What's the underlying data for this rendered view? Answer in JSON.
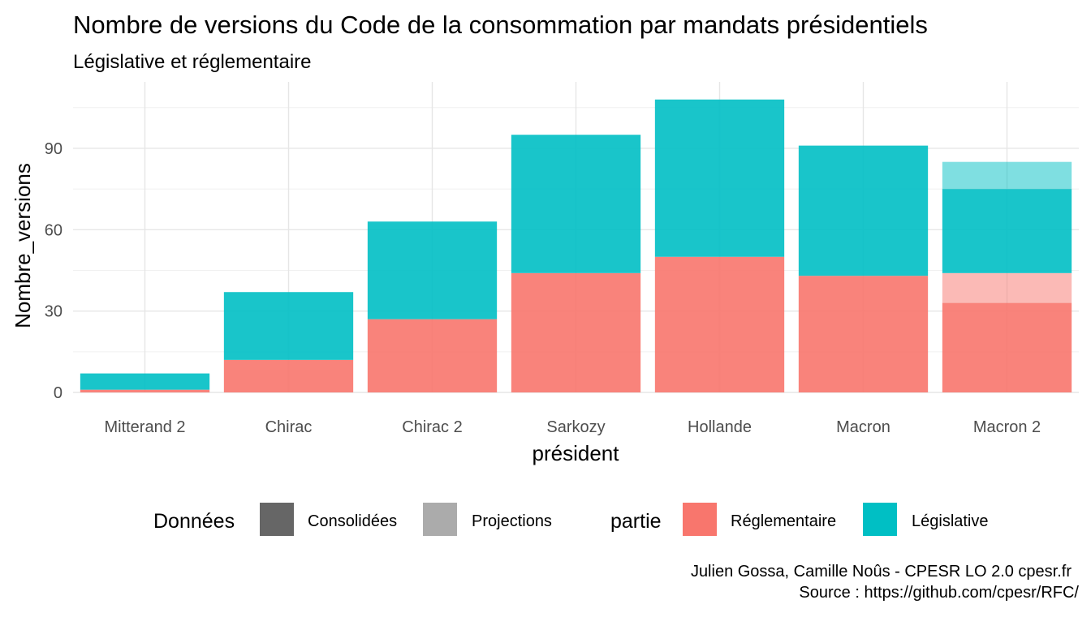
{
  "chart_data": {
    "type": "bar",
    "stacked": true,
    "title": "Nombre de versions du Code de la consommation par mandats présidentiels",
    "subtitle": "Législative et réglementaire",
    "xlabel": "président",
    "ylabel": "Nombre_versions",
    "categories": [
      "Mitterand 2",
      "Chirac",
      "Chirac 2",
      "Sarkozy",
      "Hollande",
      "Macron",
      "Macron 2"
    ],
    "ylim": [
      0,
      110
    ],
    "yticks": [
      0,
      30,
      60,
      90
    ],
    "grid": true,
    "series": [
      {
        "name": "Réglementaire",
        "data_kind": "Consolidées",
        "color": "#F8766D",
        "opacity": 0.9,
        "values": [
          1,
          12,
          27,
          44,
          50,
          43,
          33
        ]
      },
      {
        "name": "Réglementaire",
        "data_kind": "Projections",
        "color": "#F8766D",
        "opacity": 0.5,
        "values": [
          0,
          0,
          0,
          0,
          0,
          0,
          11
        ]
      },
      {
        "name": "Législative",
        "data_kind": "Consolidées",
        "color": "#00BFC4",
        "opacity": 0.9,
        "values": [
          6,
          25,
          36,
          51,
          58,
          48,
          31
        ]
      },
      {
        "name": "Législative",
        "data_kind": "Projections",
        "color": "#00BFC4",
        "opacity": 0.5,
        "values": [
          0,
          0,
          0,
          0,
          0,
          0,
          10
        ]
      }
    ],
    "legend": {
      "placement": "bottom",
      "groups": [
        {
          "title": "Données",
          "items": [
            {
              "label": "Consolidées",
              "color": "#666666"
            },
            {
              "label": "Projections",
              "color": "#ababab"
            }
          ]
        },
        {
          "title": "partie",
          "items": [
            {
              "label": "Réglementaire",
              "color": "#F8766D"
            },
            {
              "label": "Législative",
              "color": "#00BFC4"
            }
          ]
        }
      ]
    },
    "caption": [
      "Julien Gossa, Camille Noûs - CPESR LO 2.0 cpesr.fr",
      "Source : https://github.com/cpesr/RFC/"
    ]
  }
}
